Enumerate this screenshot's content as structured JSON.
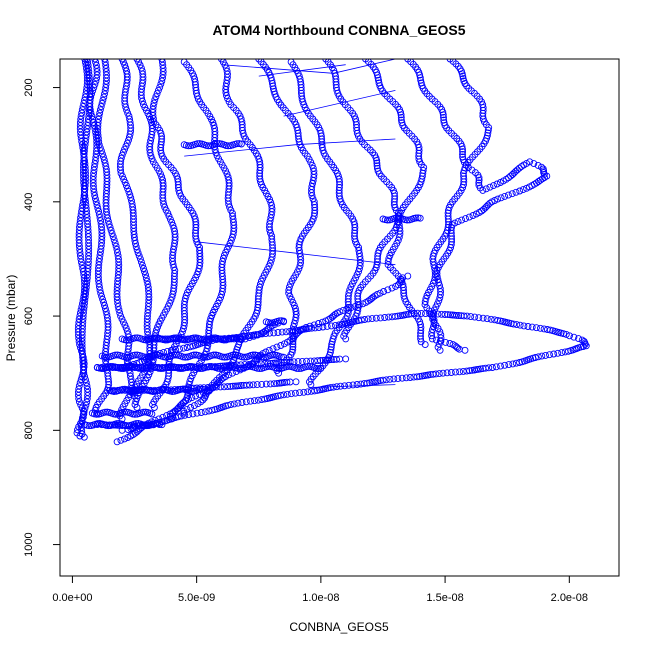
{
  "chart_data": {
    "type": "scatter",
    "title": "ATOM4 Northbound CONBNA_GEOS5",
    "xlabel": "CONBNA_GEOS5",
    "ylabel": "Pressure (mbar)",
    "xlim": [
      -5e-10,
      2.2e-08
    ],
    "ylim": [
      1055,
      150
    ],
    "y_reversed": true,
    "x_ticks": [
      0,
      5e-09,
      1e-08,
      1.5e-08,
      2e-08
    ],
    "x_tick_labels": [
      "0.0e+00",
      "5.0e-09",
      "1.0e-08",
      "1.5e-08",
      "2.0e-08"
    ],
    "y_ticks": [
      200,
      400,
      600,
      800,
      1000
    ],
    "y_tick_labels": [
      "200",
      "400",
      "600",
      "800",
      "1000"
    ],
    "marker": "open-circle",
    "color": "#0000ff",
    "grid": false,
    "legend": "none",
    "profiles": [
      [
        [
          5e-10,
          150
        ],
        [
          4.2e-10,
          300
        ],
        [
          3.8e-10,
          500
        ],
        [
          3.5e-10,
          650
        ],
        [
          3.6e-10,
          750
        ],
        [
          3e-10,
          810
        ]
      ],
      [
        [
          6e-10,
          150
        ],
        [
          5.5e-10,
          400
        ],
        [
          5e-10,
          700
        ],
        [
          4.8e-10,
          812
        ]
      ],
      [
        [
          9e-10,
          150
        ],
        [
          8e-10,
          250
        ],
        [
          1e-09,
          400
        ],
        [
          1.2e-09,
          560
        ],
        [
          1.5e-09,
          700
        ],
        [
          1e-09,
          770
        ]
      ],
      [
        [
          1.3e-09,
          150
        ],
        [
          1.1e-09,
          300
        ],
        [
          1.6e-09,
          450
        ],
        [
          2e-09,
          600
        ],
        [
          2.4e-09,
          700
        ],
        [
          2e-09,
          780
        ]
      ],
      [
        [
          2e-09,
          150
        ],
        [
          2.3e-09,
          250
        ],
        [
          2e-09,
          350
        ],
        [
          2.8e-09,
          500
        ],
        [
          3.2e-09,
          650
        ],
        [
          2.5e-09,
          740
        ]
      ],
      [
        [
          2.6e-09,
          150
        ],
        [
          3e-09,
          240
        ],
        [
          3.3e-09,
          330
        ],
        [
          3.9e-09,
          420
        ],
        [
          4.2e-09,
          520
        ],
        [
          3.4e-09,
          640
        ],
        [
          2.6e-09,
          760
        ]
      ],
      [
        [
          3.6e-09,
          150
        ],
        [
          3.3e-09,
          260
        ],
        [
          3.8e-09,
          330
        ],
        [
          4.6e-09,
          400
        ],
        [
          5.2e-09,
          480
        ],
        [
          4.6e-09,
          580
        ],
        [
          4e-09,
          680
        ],
        [
          3.3e-09,
          760
        ]
      ],
      [
        [
          4.5e-09,
          155
        ],
        [
          5.4e-09,
          240
        ],
        [
          6e-09,
          330
        ],
        [
          6.5e-09,
          420
        ],
        [
          6.1e-09,
          520
        ],
        [
          5.6e-09,
          620
        ],
        [
          4.8e-09,
          720
        ],
        [
          4e-09,
          780
        ]
      ],
      [
        [
          6e-09,
          150
        ],
        [
          6.4e-09,
          230
        ],
        [
          7.2e-09,
          300
        ],
        [
          7.8e-09,
          380
        ],
        [
          8.1e-09,
          460
        ],
        [
          7.6e-09,
          560
        ],
        [
          6.8e-09,
          650
        ],
        [
          5.6e-09,
          730
        ],
        [
          4.5e-09,
          770
        ]
      ],
      [
        [
          7.5e-09,
          150
        ],
        [
          8.6e-09,
          240
        ],
        [
          9.5e-09,
          320
        ],
        [
          9.8e-09,
          400
        ],
        [
          9.2e-09,
          480
        ],
        [
          8.8e-09,
          560
        ],
        [
          9e-09,
          640
        ],
        [
          8.3e-09,
          700
        ]
      ],
      [
        [
          8.8e-09,
          155
        ],
        [
          9.6e-09,
          250
        ],
        [
          1.04e-08,
          330
        ],
        [
          1.1e-08,
          410
        ],
        [
          1.16e-08,
          480
        ],
        [
          1.12e-08,
          570
        ],
        [
          1.06e-08,
          640
        ],
        [
          9.6e-09,
          720
        ]
      ],
      [
        [
          1.02e-08,
          150
        ],
        [
          1.1e-08,
          230
        ],
        [
          1.18e-08,
          300
        ],
        [
          1.26e-08,
          360
        ],
        [
          1.32e-08,
          420
        ],
        [
          1.24e-08,
          490
        ],
        [
          1.16e-08,
          560
        ],
        [
          1.1e-08,
          640
        ]
      ],
      [
        [
          1.18e-08,
          150
        ],
        [
          1.28e-08,
          220
        ],
        [
          1.36e-08,
          280
        ],
        [
          1.42e-08,
          340
        ],
        [
          1.32e-08,
          430
        ],
        [
          1.28e-08,
          510
        ],
        [
          1.36e-08,
          580
        ],
        [
          1.42e-08,
          650
        ]
      ],
      [
        [
          1.35e-08,
          150
        ],
        [
          1.45e-08,
          220
        ],
        [
          1.53e-08,
          280
        ],
        [
          1.6e-08,
          340
        ],
        [
          1.66e-08,
          380
        ],
        [
          1.85e-08,
          330
        ],
        [
          1.92e-08,
          355
        ],
        [
          1.7e-08,
          400
        ],
        [
          1.54e-08,
          440
        ],
        [
          1.48e-08,
          520
        ],
        [
          1.46e-08,
          600
        ],
        [
          1.48e-08,
          660
        ]
      ],
      [
        [
          1.52e-08,
          150
        ],
        [
          1.62e-08,
          210
        ],
        [
          1.68e-08,
          270
        ],
        [
          1.58e-08,
          350
        ],
        [
          1.52e-08,
          420
        ],
        [
          1.46e-08,
          500
        ],
        [
          1.43e-08,
          580
        ],
        [
          1.46e-08,
          640
        ],
        [
          1.58e-08,
          660
        ]
      ],
      [
        [
          2e-09,
          690
        ],
        [
          4e-09,
          660
        ],
        [
          6e-09,
          640
        ],
        [
          8e-09,
          630
        ],
        [
          1e-08,
          620
        ],
        [
          1.2e-08,
          605
        ],
        [
          1.4e-08,
          595
        ],
        [
          1.6e-08,
          600
        ],
        [
          1.8e-08,
          615
        ],
        [
          2e-08,
          632
        ],
        [
          2.08e-08,
          652
        ],
        [
          1.9e-08,
          670
        ],
        [
          1.7e-08,
          690
        ],
        [
          1.5e-08,
          700
        ],
        [
          1.3e-08,
          710
        ],
        [
          1.1e-08,
          722
        ],
        [
          9e-09,
          735
        ],
        [
          7e-09,
          750
        ],
        [
          5e-09,
          770
        ],
        [
          3e-09,
          790
        ],
        [
          2e-09,
          800
        ]
      ],
      [
        [
          1.8e-09,
          820
        ],
        [
          3.5e-09,
          780
        ],
        [
          5e-09,
          740
        ],
        [
          6.5e-09,
          700
        ],
        [
          8e-09,
          660
        ],
        [
          9.5e-09,
          620
        ],
        [
          1.1e-08,
          590
        ],
        [
          1.25e-08,
          560
        ],
        [
          1.35e-08,
          530
        ]
      ],
      [
        [
          3e-09,
          640
        ],
        [
          5e-09,
          640
        ],
        [
          7e-09,
          640
        ],
        [
          8.5e-09,
          610
        ]
      ],
      [
        [
          1e-09,
          690
        ],
        [
          3e-09,
          690
        ],
        [
          5e-09,
          690
        ],
        [
          7e-09,
          685
        ],
        [
          9e-09,
          680
        ],
        [
          1.1e-08,
          675
        ]
      ],
      [
        [
          1.5e-09,
          730
        ],
        [
          3.5e-09,
          730
        ],
        [
          5.5e-09,
          725
        ],
        [
          7.5e-09,
          720
        ],
        [
          9e-09,
          715
        ]
      ],
      [
        [
          1e-09,
          790
        ],
        [
          2.5e-09,
          792
        ],
        [
          3.5e-09,
          790
        ]
      ]
    ],
    "horizontal_runs": [
      [
        5e-10,
        3.6e-09,
        790
      ],
      [
        8e-10,
        3.2e-09,
        770
      ],
      [
        1e-09,
        1e-08,
        690
      ],
      [
        1.2e-09,
        8.5e-09,
        670
      ],
      [
        2e-09,
        6.8e-09,
        640
      ],
      [
        1.5e-09,
        5.5e-09,
        730
      ],
      [
        4.5e-09,
        6.8e-09,
        300
      ],
      [
        1.25e-08,
        1.4e-08,
        430
      ],
      [
        7.8e-09,
        8.5e-09,
        610
      ]
    ],
    "connector_lines": [
      [
        [
          6e-09,
          160
        ],
        [
          1.05e-08,
          175
        ],
        [
          1.3e-08,
          150
        ]
      ],
      [
        [
          7.5e-09,
          180
        ],
        [
          1.1e-08,
          160
        ]
      ],
      [
        [
          8.5e-09,
          250
        ],
        [
          1.3e-08,
          205
        ]
      ],
      [
        [
          4.5e-09,
          320
        ],
        [
          9e-09,
          300
        ],
        [
          1.3e-08,
          290
        ]
      ],
      [
        [
          5e-09,
          470
        ],
        [
          9e-09,
          490
        ],
        [
          1.3e-08,
          510
        ]
      ],
      [
        [
          9.5e-09,
          725
        ],
        [
          1.3e-08,
          720
        ]
      ]
    ]
  }
}
